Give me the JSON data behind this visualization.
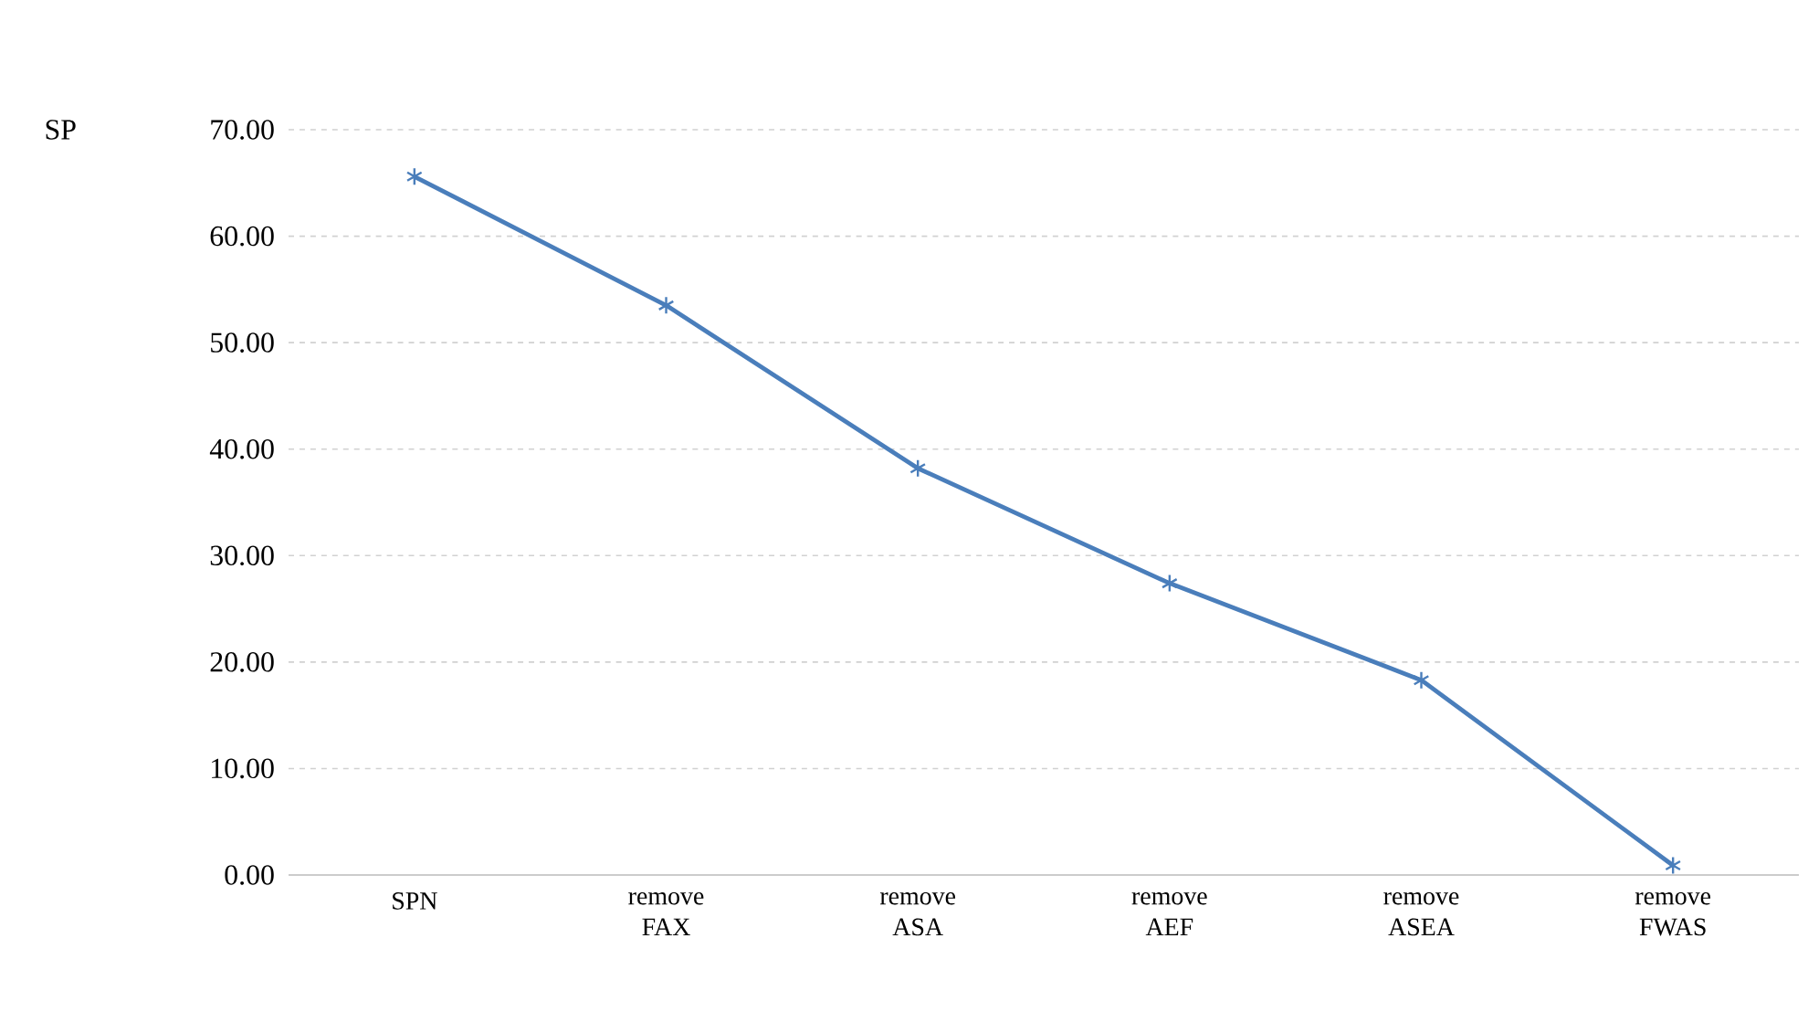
{
  "chart_data": {
    "type": "line",
    "ylabel": "SP",
    "categories": [
      "SPN",
      "remove FAX",
      "remove ASA",
      "remove AEF",
      "remove ASEA",
      "remove FWAS"
    ],
    "series": [
      {
        "color": "#4a7ebb",
        "values": [
          65.6,
          53.5,
          38.2,
          27.4,
          18.3,
          0.9
        ]
      }
    ],
    "ylim": [
      0,
      70
    ],
    "yticks": [
      {
        "value": 0,
        "label": "0.00"
      },
      {
        "value": 10,
        "label": "10.00"
      },
      {
        "value": 20,
        "label": "20.00"
      },
      {
        "value": 30,
        "label": "30.00"
      },
      {
        "value": 40,
        "label": "40.00"
      },
      {
        "value": 50,
        "label": "50.00"
      },
      {
        "value": 60,
        "label": "60.00"
      },
      {
        "value": 70,
        "label": "70.00"
      }
    ],
    "grid": "y",
    "marker": "cross",
    "line_style": "solid"
  }
}
